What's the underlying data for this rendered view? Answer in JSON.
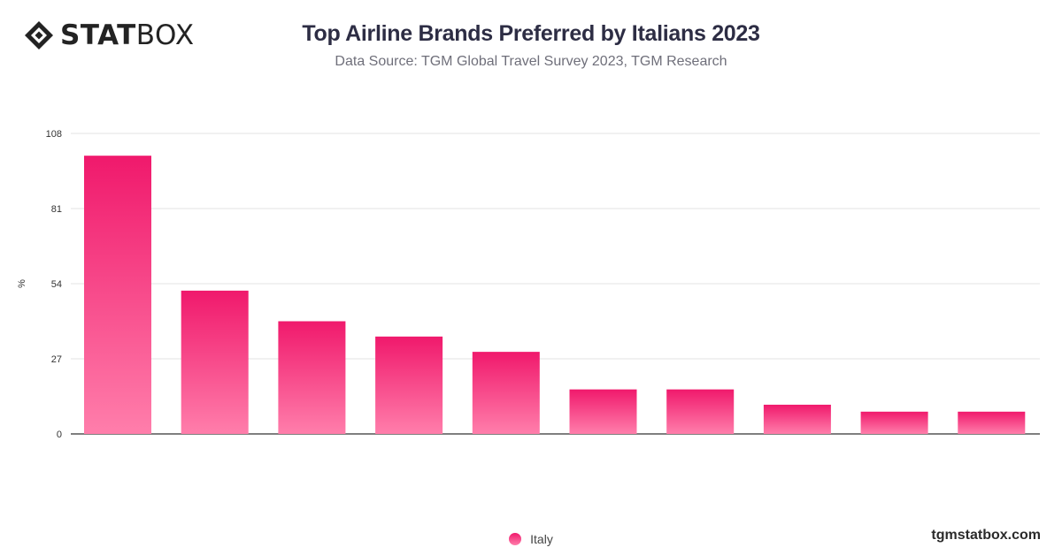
{
  "header": {
    "logo_bold": "STAT",
    "logo_light": "BOX",
    "title": "Top Airline Brands Preferred by Italians 2023",
    "subtitle": "Data Source: TGM Global Travel Survey 2023, TGM Research"
  },
  "footer": {
    "legend_label": "Italy",
    "brand_url": "tgmstatbox.com"
  },
  "colors": {
    "bar_top": "#f0196c",
    "bar_bottom": "#ff7eab",
    "grid": "#e3e3e3",
    "axis": "#333333"
  },
  "chart_data": {
    "type": "bar",
    "categories": [
      "",
      "",
      "",
      "",
      "",
      "",
      "",
      "",
      "",
      ""
    ],
    "series": [
      {
        "name": "Italy",
        "values": [
          100,
          51.5,
          40.5,
          35,
          29.5,
          16,
          16,
          10.5,
          8,
          8
        ]
      }
    ],
    "ylabel": "%",
    "ylim": [
      0,
      108
    ],
    "yticks": [
      0,
      27,
      54,
      81,
      108
    ],
    "grid": true,
    "legend": "bottom-center"
  }
}
